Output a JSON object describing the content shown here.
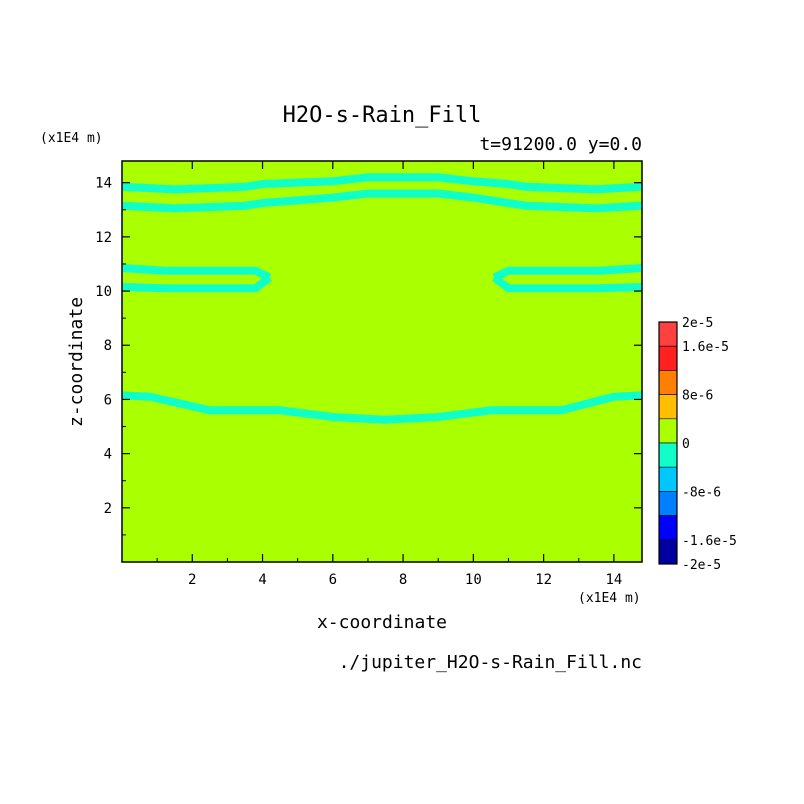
{
  "chart_data": {
    "type": "heatmap",
    "title": "H2O-s-Rain_Fill",
    "subtitle": "t=91200.0 y=0.0",
    "xlabel": "x-coordinate",
    "ylabel": "z-coordinate",
    "x_unit": "(x1E4 m)",
    "y_unit": "(x1E4 m)",
    "source_file": "./jupiter_H2O-s-Rain_Fill.nc",
    "xlim": [
      0,
      14.8
    ],
    "ylim": [
      0,
      14.8
    ],
    "x_ticks": [
      "2",
      "4",
      "6",
      "8",
      "10",
      "12",
      "14"
    ],
    "y_ticks": [
      "2",
      "4",
      "6",
      "8",
      "10",
      "12",
      "14"
    ],
    "background_value": 0,
    "background_color": "#aaff00",
    "contour_color": "#10ffc8",
    "bands": [
      {
        "name": "band-upper-1",
        "x": [
          0,
          1.5,
          3.5,
          4,
          6,
          7,
          9,
          10,
          11,
          11.5,
          13.5,
          14.8
        ],
        "z": [
          13.85,
          13.75,
          13.85,
          13.95,
          14.05,
          14.2,
          14.2,
          14.05,
          13.95,
          13.85,
          13.75,
          13.85
        ]
      },
      {
        "name": "band-upper-2",
        "x": [
          0,
          1.5,
          3.5,
          4,
          6,
          7,
          9,
          10,
          11,
          11.5,
          13.5,
          14.8
        ],
        "z": [
          13.15,
          13.05,
          13.15,
          13.25,
          13.45,
          13.6,
          13.6,
          13.45,
          13.25,
          13.15,
          13.05,
          13.15
        ]
      },
      {
        "name": "band-left-1",
        "x": [
          0,
          1.2,
          3.8,
          4.2
        ],
        "z": [
          10.85,
          10.75,
          10.75,
          10.5
        ]
      },
      {
        "name": "band-left-2",
        "x": [
          0,
          1.2,
          3.8,
          4.2
        ],
        "z": [
          10.15,
          10.1,
          10.1,
          10.5
        ]
      },
      {
        "name": "band-right-1",
        "x": [
          10.6,
          11,
          13.6,
          14.8
        ],
        "z": [
          10.5,
          10.75,
          10.75,
          10.85
        ]
      },
      {
        "name": "band-right-2",
        "x": [
          10.6,
          11,
          13.6,
          14.8
        ],
        "z": [
          10.5,
          10.1,
          10.1,
          10.15
        ]
      },
      {
        "name": "band-lower",
        "x": [
          0,
          0.8,
          2.5,
          4.5,
          6,
          7.5,
          9,
          10.5,
          12.5,
          14,
          14.8
        ],
        "z": [
          6.15,
          6.1,
          5.6,
          5.6,
          5.35,
          5.25,
          5.35,
          5.6,
          5.6,
          6.1,
          6.15
        ]
      }
    ],
    "colorbar": {
      "min": -2e-05,
      "max": 2e-05,
      "labels": [
        "2e-5",
        "1.6e-5",
        "8e-6",
        "0",
        "-8e-6",
        "-1.6e-5",
        "-2e-5"
      ],
      "label_values": [
        2e-05,
        1.6e-05,
        8e-06,
        0,
        -8e-06,
        -1.6e-05,
        -2e-05
      ],
      "levels": [
        {
          "min": 1.6e-05,
          "max": 2e-05,
          "color": "#ff4040"
        },
        {
          "min": 1.2e-05,
          "max": 1.6e-05,
          "color": "#ff2020"
        },
        {
          "min": 8e-06,
          "max": 1.2e-05,
          "color": "#ff8000"
        },
        {
          "min": 4e-06,
          "max": 8e-06,
          "color": "#ffbf00"
        },
        {
          "min": 0,
          "max": 4e-06,
          "color": "#aaff00"
        },
        {
          "min": -4e-06,
          "max": 0,
          "color": "#10ffc8"
        },
        {
          "min": -8e-06,
          "max": -4e-06,
          "color": "#00c8ff"
        },
        {
          "min": -1.2e-05,
          "max": -8e-06,
          "color": "#0080ff"
        },
        {
          "min": -1.6e-05,
          "max": -1.2e-05,
          "color": "#0000ff"
        },
        {
          "min": -2e-05,
          "max": -1.6e-05,
          "color": "#0000a0"
        }
      ]
    }
  }
}
